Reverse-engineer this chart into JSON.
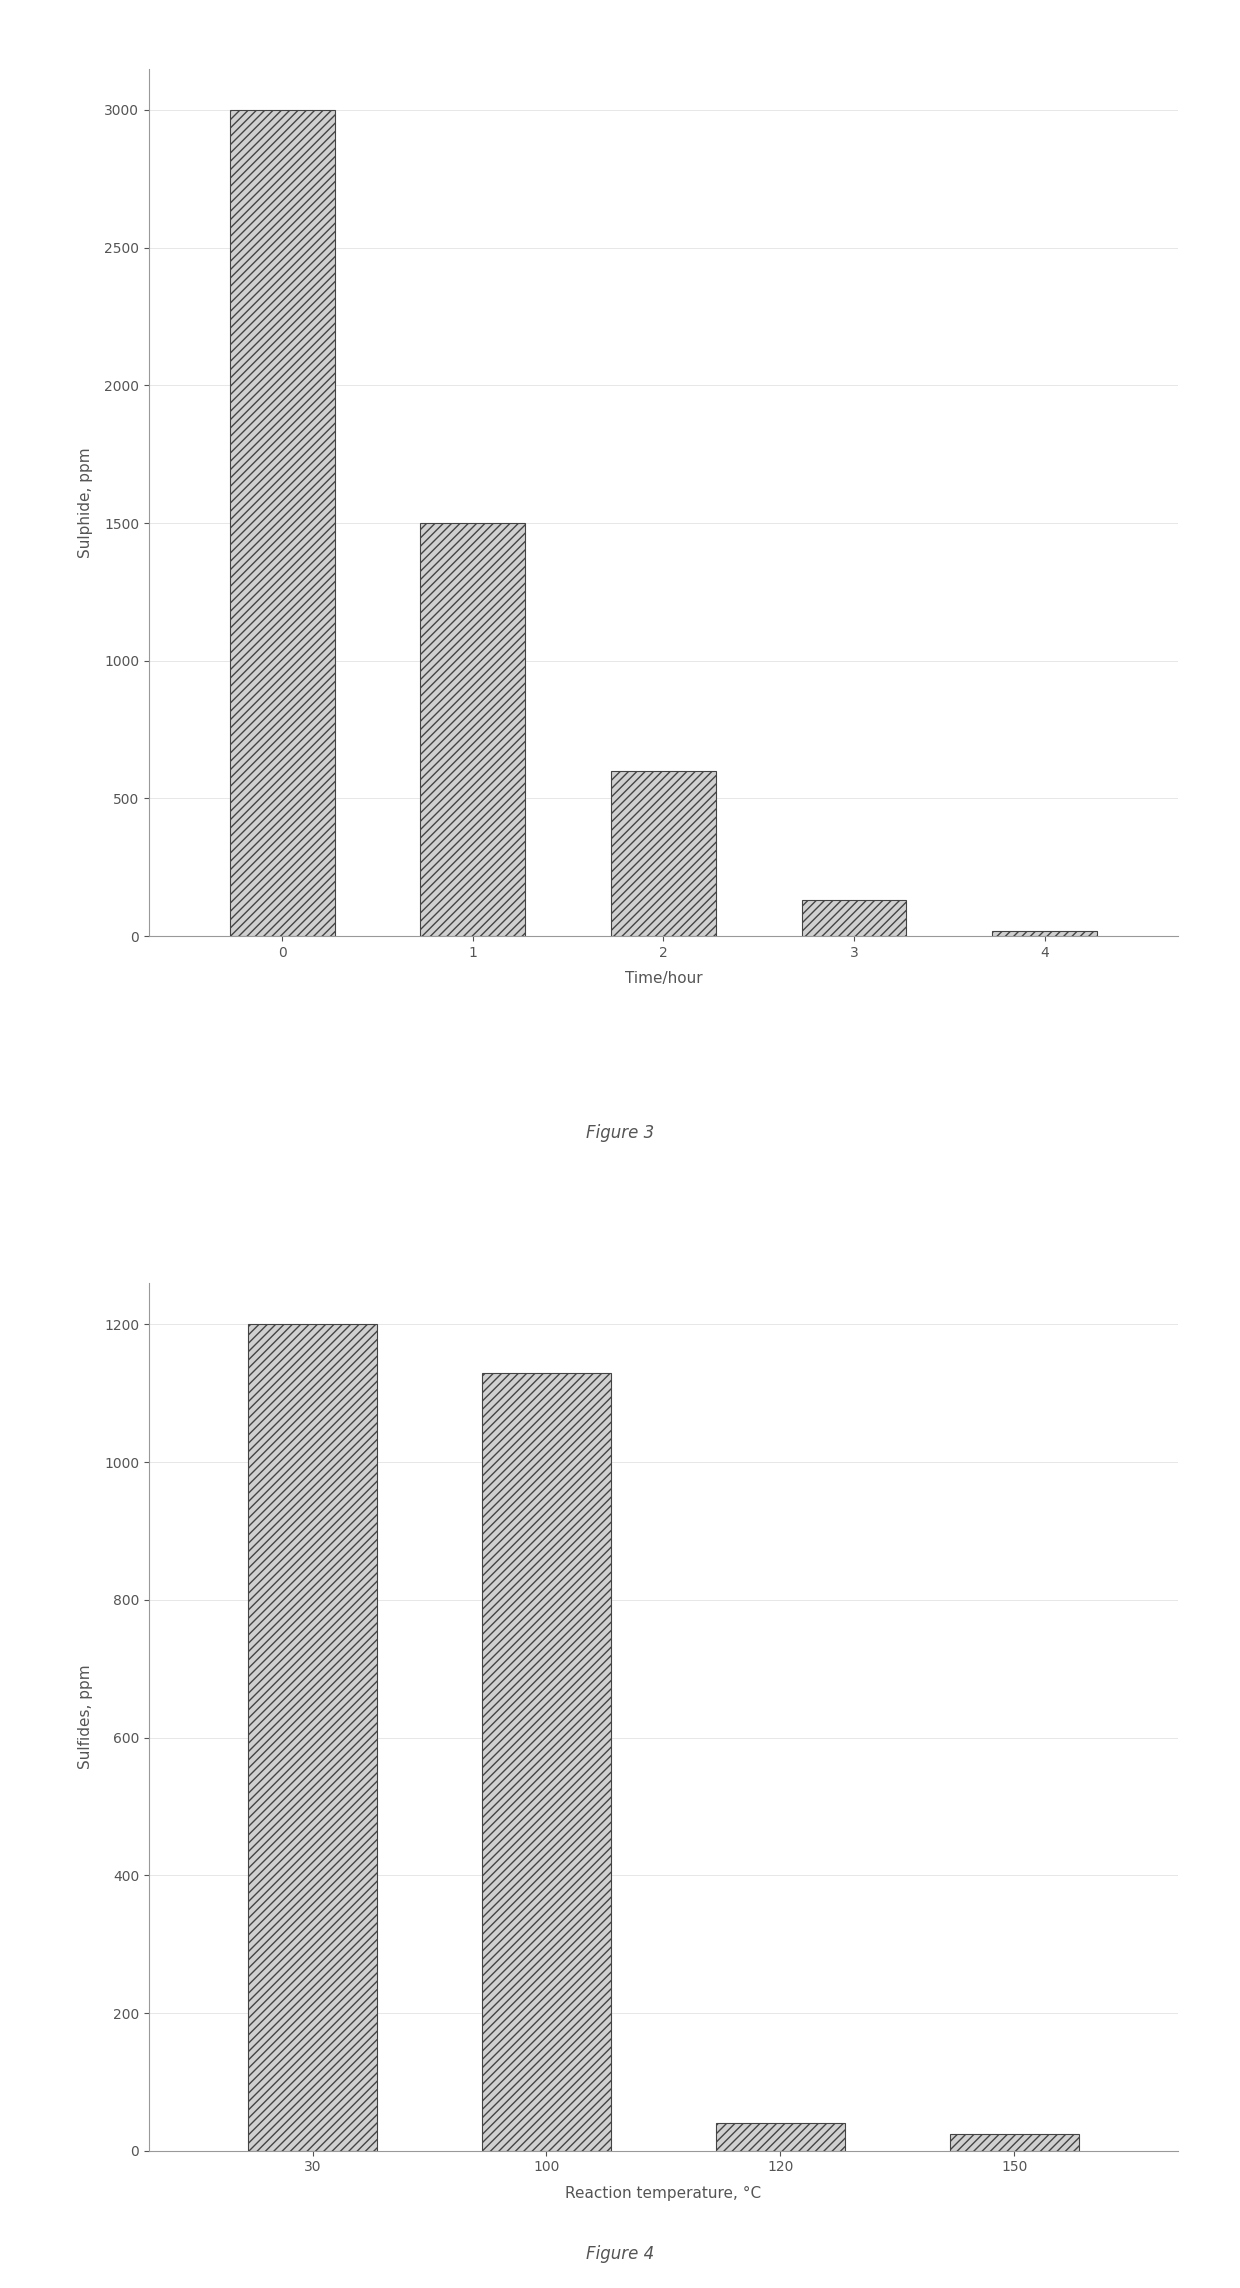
{
  "fig3": {
    "categories": [
      "0",
      "1",
      "2",
      "3",
      "4"
    ],
    "values": [
      3000,
      1500,
      600,
      130,
      20
    ],
    "xlabel": "Time/hour",
    "ylabel": "Sulphide, ppm",
    "caption": "Figure 3",
    "ylim": [
      0,
      3000
    ],
    "yticks": [
      0,
      500,
      1000,
      1500,
      2000,
      2500,
      3000
    ]
  },
  "fig4": {
    "categories": [
      "30",
      "100",
      "120",
      "150"
    ],
    "values": [
      1200,
      1130,
      40,
      25
    ],
    "xlabel": "Reaction temperature, °C",
    "ylabel": "Sulfides, ppm",
    "caption": "Figure 4",
    "ylim": [
      0,
      1200
    ],
    "yticks": [
      0,
      200,
      400,
      600,
      800,
      1000,
      1200
    ]
  },
  "bar_hatch": "////",
  "bar_facecolor": "#d0d0d0",
  "bar_edgecolor": "#444444",
  "text_color": "#555555",
  "caption_fontsize": 12,
  "axis_label_fontsize": 11,
  "tick_fontsize": 10
}
